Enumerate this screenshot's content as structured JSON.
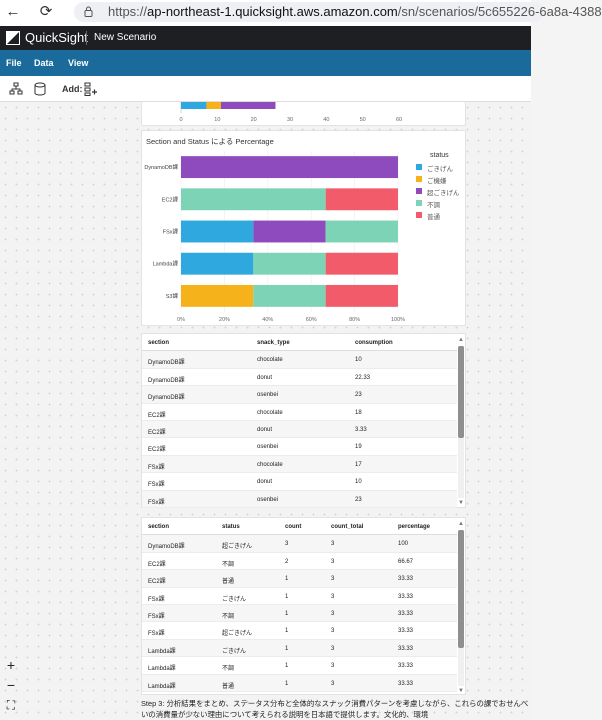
{
  "browser": {
    "url_prefix": "https://",
    "url_host": "ap-northeast-1.quicksight.aws.amazon.com",
    "url_path": "/sn/scenarios/5c655226-6a8a-4388"
  },
  "app": {
    "logo_text": "QuickSight",
    "scenario_title": "New Scenario"
  },
  "menu": {
    "file": "File",
    "data": "Data",
    "view": "View"
  },
  "toolbar": {
    "add_label": "Add:"
  },
  "top_chart": {
    "ticks": [
      "0",
      "10",
      "20",
      "30",
      "40",
      "50",
      "60"
    ],
    "segments": [
      {
        "value": 7,
        "color": "#2ea8de"
      },
      {
        "value": 4,
        "color": "#f5b21a"
      },
      {
        "value": 15,
        "color": "#8e4bbd"
      }
    ]
  },
  "chart_data": {
    "type": "bar",
    "orientation": "horizontal",
    "stacked": "percent",
    "title": "Section and Status による Percentage",
    "categories": [
      "DynamoDB課",
      "EC2課",
      "FSx課",
      "Lambda課",
      "S3課"
    ],
    "xlim": [
      0,
      100
    ],
    "xticks": [
      "0%",
      "20%",
      "40%",
      "60%",
      "80%",
      "100%"
    ],
    "legend_title": "status",
    "legend_position": "right",
    "series": [
      {
        "name": "ごきげん",
        "color": "#2ea8de",
        "values": [
          0,
          0,
          33.33,
          33.33,
          0
        ]
      },
      {
        "name": "ご機嫌",
        "color": "#f5b21a",
        "values": [
          0,
          0,
          0,
          0,
          33.33
        ]
      },
      {
        "name": "超ごきげん",
        "color": "#8e4bbd",
        "values": [
          100,
          0,
          33.33,
          0,
          0
        ]
      },
      {
        "name": "不調",
        "color": "#7dd3b6",
        "values": [
          0,
          66.67,
          33.33,
          33.33,
          33.33
        ]
      },
      {
        "name": "普通",
        "color": "#f25c6a",
        "values": [
          0,
          33.33,
          0,
          33.33,
          33.33
        ]
      }
    ]
  },
  "table1": {
    "columns": [
      "section",
      "snack_type",
      "consumption"
    ],
    "rows": [
      [
        "DynamoDB課",
        "chocolate",
        "10"
      ],
      [
        "DynamoDB課",
        "donut",
        "22.33"
      ],
      [
        "DynamoDB課",
        "osenbei",
        "23"
      ],
      [
        "EC2課",
        "chocolate",
        "18"
      ],
      [
        "EC2課",
        "donut",
        "3.33"
      ],
      [
        "EC2課",
        "osenbei",
        "19"
      ],
      [
        "FSx課",
        "chocolate",
        "17"
      ],
      [
        "FSx課",
        "donut",
        "10"
      ],
      [
        "FSx課",
        "osenbei",
        "23"
      ]
    ]
  },
  "table2": {
    "columns": [
      "section",
      "status",
      "count",
      "count_total",
      "percentage"
    ],
    "rows": [
      [
        "DynamoDB課",
        "超ごきげん",
        "3",
        "3",
        "100"
      ],
      [
        "EC2課",
        "不調",
        "2",
        "3",
        "66.67"
      ],
      [
        "EC2課",
        "普通",
        "1",
        "3",
        "33.33"
      ],
      [
        "FSx課",
        "ごきげん",
        "1",
        "3",
        "33.33"
      ],
      [
        "FSx課",
        "不調",
        "1",
        "3",
        "33.33"
      ],
      [
        "FSx課",
        "超ごきげん",
        "1",
        "3",
        "33.33"
      ],
      [
        "Lambda課",
        "ごきげん",
        "1",
        "3",
        "33.33"
      ],
      [
        "Lambda課",
        "不調",
        "1",
        "3",
        "33.33"
      ],
      [
        "Lambda課",
        "普通",
        "1",
        "3",
        "33.33"
      ]
    ]
  },
  "step_text": "Step 3: 分析結果をまとめ、ステータス分布と全体的なスナック消費パターンを考慮しながら、これらの課でおせんべいの消費量が少ない理由について考えられる説明を日本語で提供します。文化的、環境",
  "zoom": {
    "in": "+",
    "out": "−",
    "fit": "⛶"
  }
}
